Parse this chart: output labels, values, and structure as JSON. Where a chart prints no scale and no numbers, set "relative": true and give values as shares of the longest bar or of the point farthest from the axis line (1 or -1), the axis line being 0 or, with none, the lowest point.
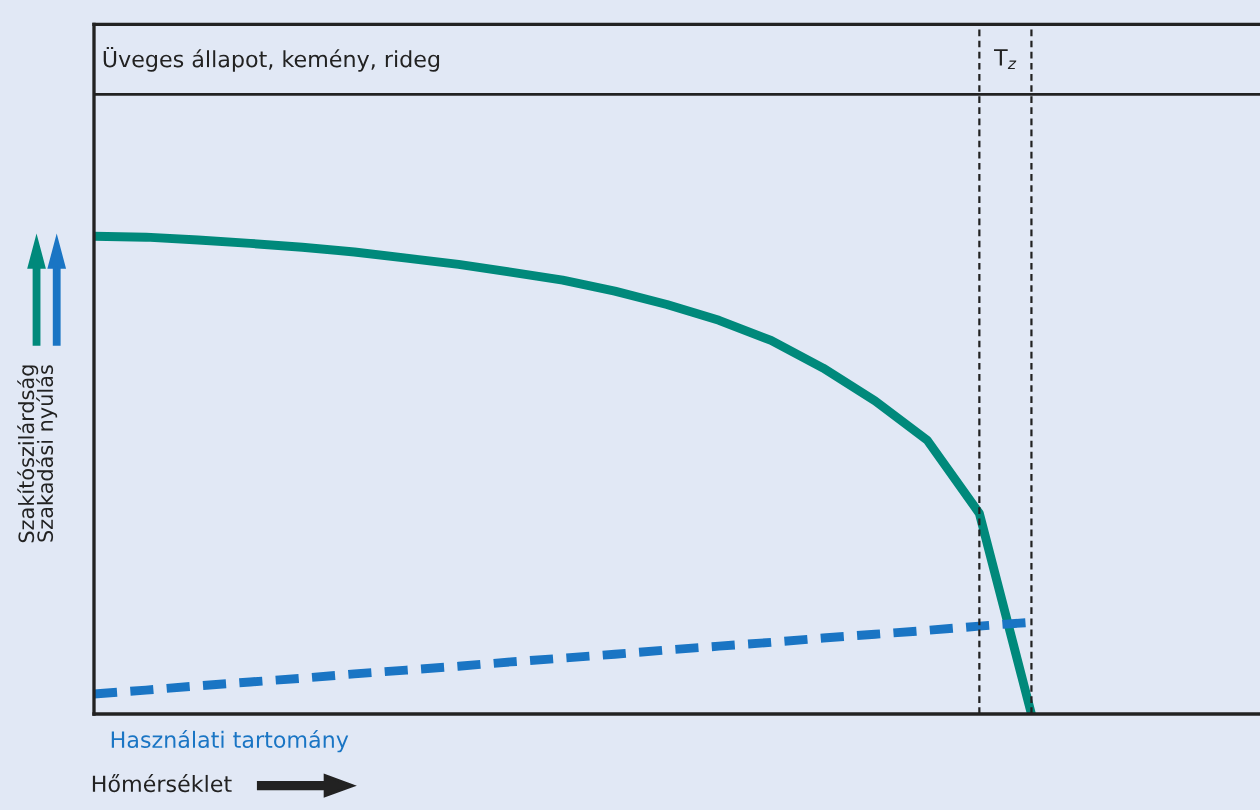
{
  "chart_data": {
    "type": "line",
    "relative": true,
    "categories": [
      null,
      null,
      null,
      null,
      null,
      null,
      null,
      null,
      null,
      null,
      null,
      null,
      null,
      null,
      null,
      null,
      null,
      null,
      null,
      null,
      null,
      null,
      null
    ],
    "series": [
      {
        "color": "#00897b",
        "line_style": "solid",
        "values": [
          1.0,
          0.998,
          0.992,
          0.985,
          0.977,
          0.967,
          0.954,
          0.941,
          0.925,
          0.908,
          0.885,
          0.857,
          0.824,
          0.782,
          0.724,
          0.655,
          0.573,
          0.42,
          0,
          null,
          null,
          null,
          null
        ]
      },
      {
        "color": "#1a75c4",
        "line_style": "dashed",
        "values": [
          0.042,
          0.05,
          0.059,
          0.067,
          0.075,
          0.084,
          0.092,
          0.1,
          0.109,
          0.117,
          0.125,
          0.134,
          0.142,
          0.15,
          0.159,
          0.167,
          0.175,
          0.184,
          0.192,
          null,
          null,
          null,
          null
        ]
      }
    ],
    "ylabel": "Szakítószilárdság\nSzakadási nyúlás",
    "xlabel": "Hőmérséklet",
    "ref_lines": [
      {
        "axis": "y",
        "value": 1.297,
        "label": "Üveges állapot, kemény, rideg",
        "color": "#222222",
        "line_style": "solid"
      }
    ],
    "annotations": [
      "T$_{z}$",
      "Használati tartomány"
    ],
    "legend": false,
    "marker": "none"
  }
}
